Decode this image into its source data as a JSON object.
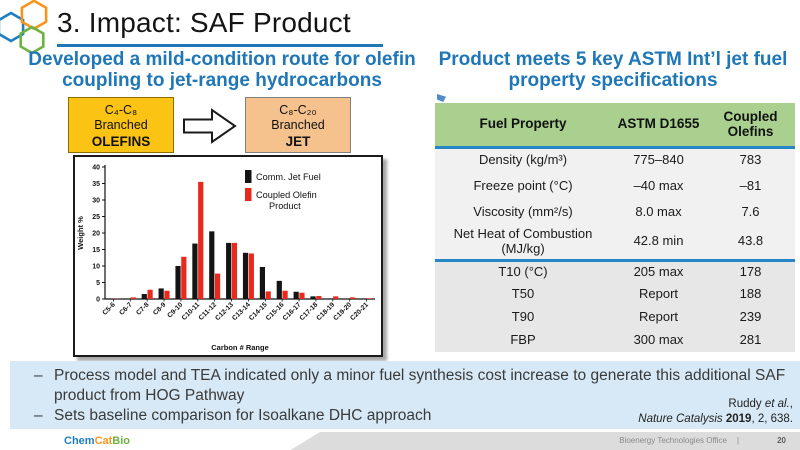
{
  "slide": {
    "title": "3. Impact: SAF Product",
    "bullet_marker": "–"
  },
  "left": {
    "heading": "Developed a mild-condition route for olefin coupling to jet-range hydrocarbons",
    "olefins_box": {
      "line1": "C₄-C₈",
      "line2": "Branched",
      "line3": "OLEFINS"
    },
    "jet_box": {
      "line1": "C₈-C₂₀",
      "line2": "Branched",
      "line3": "JET"
    }
  },
  "right": {
    "heading": "Product meets 5 key ASTM Int’l jet fuel property specifications",
    "table": {
      "headers": [
        "Fuel Property",
        "ASTM D1655",
        "Coupled Olefins"
      ],
      "rows": [
        {
          "property": "Density (kg/m³)",
          "astm": "775–840",
          "coupled": "783"
        },
        {
          "property": "Freeze point (°C)",
          "astm": "–40 max",
          "coupled": "–81"
        },
        {
          "property": "Viscosity (mm²/s)",
          "astm": "8.0 max",
          "coupled": "7.6"
        },
        {
          "property": "Net Heat of Combustion (MJ/kg)",
          "astm": "42.8 min",
          "coupled": "43.8"
        },
        {
          "property": "T10 (°C)",
          "astm": "205 max",
          "coupled": "178"
        },
        {
          "property": "T50",
          "astm": "Report",
          "coupled": "188"
        },
        {
          "property": "T90",
          "astm": "Report",
          "coupled": "239"
        },
        {
          "property": "FBP",
          "astm": "300 max",
          "coupled": "281"
        }
      ],
      "divider_after_row": 4,
      "header_bg": "#A9D08E",
      "rule_color": "#2786C6"
    }
  },
  "chart_data": {
    "type": "bar",
    "title": "",
    "categories": [
      "C5-6",
      "C6-7",
      "C7-8",
      "C8-9",
      "C9-10",
      "C10-11",
      "C11-12",
      "C12-13",
      "C13-14",
      "C14-15",
      "C15-16",
      "C16-17",
      "C17-18",
      "C18-19",
      "C19-20",
      "C20-21"
    ],
    "series": [
      {
        "name": "Comm. Jet Fuel",
        "color": "#141414",
        "values": [
          0.1,
          0.1,
          1.5,
          3.2,
          10,
          16.8,
          20.5,
          17,
          14,
          9.7,
          5.5,
          2.2,
          0.8,
          0.1,
          0,
          0.1
        ]
      },
      {
        "name": "Coupled Olefin Product",
        "color": "#E8291C",
        "values": [
          0.1,
          0.5,
          2.8,
          2.5,
          12.8,
          35.5,
          7.7,
          17,
          13.8,
          2.3,
          2.5,
          1.9,
          0.9,
          0.8,
          0.5,
          0.2
        ]
      }
    ],
    "xlabel": "Carbon # Range",
    "ylabel": "Weight %",
    "ylim": [
      0,
      40
    ],
    "ytick_step": 5,
    "legend_position": "top-right",
    "grid": false
  },
  "bottom": {
    "panel_bg": "#D7E9F6",
    "bullets": [
      "Process model and TEA indicated only a minor fuel synthesis cost increase to generate this additional SAF product from HOG Pathway",
      "Sets baseline comparison for Isoalkane DHC approach"
    ],
    "citation": {
      "line1_name": "Ruddy ",
      "line1_etal": "et al.",
      "line1_comma": ",",
      "line2_journal": "Nature Catalysis",
      "line2_year": " 2019",
      "line2_rest": ", 2, 638."
    }
  },
  "footer": {
    "logo_chem": "Chem",
    "logo_cat": "Cat",
    "logo_bio": "Bio",
    "org": "Bioenergy Technologies Office",
    "separator": "|",
    "page_number": "20"
  },
  "colors": {
    "heading_blue": "#2077B8",
    "title_underline": "#2077B8",
    "olefins_box_bg": "#FBC314",
    "jet_box_bg": "#F5C28E",
    "bar_black": "#141414",
    "bar_red": "#E8291C",
    "hex_blue": "#1F7EC2",
    "hex_orange": "#F7941D",
    "hex_green": "#6CB33F"
  }
}
